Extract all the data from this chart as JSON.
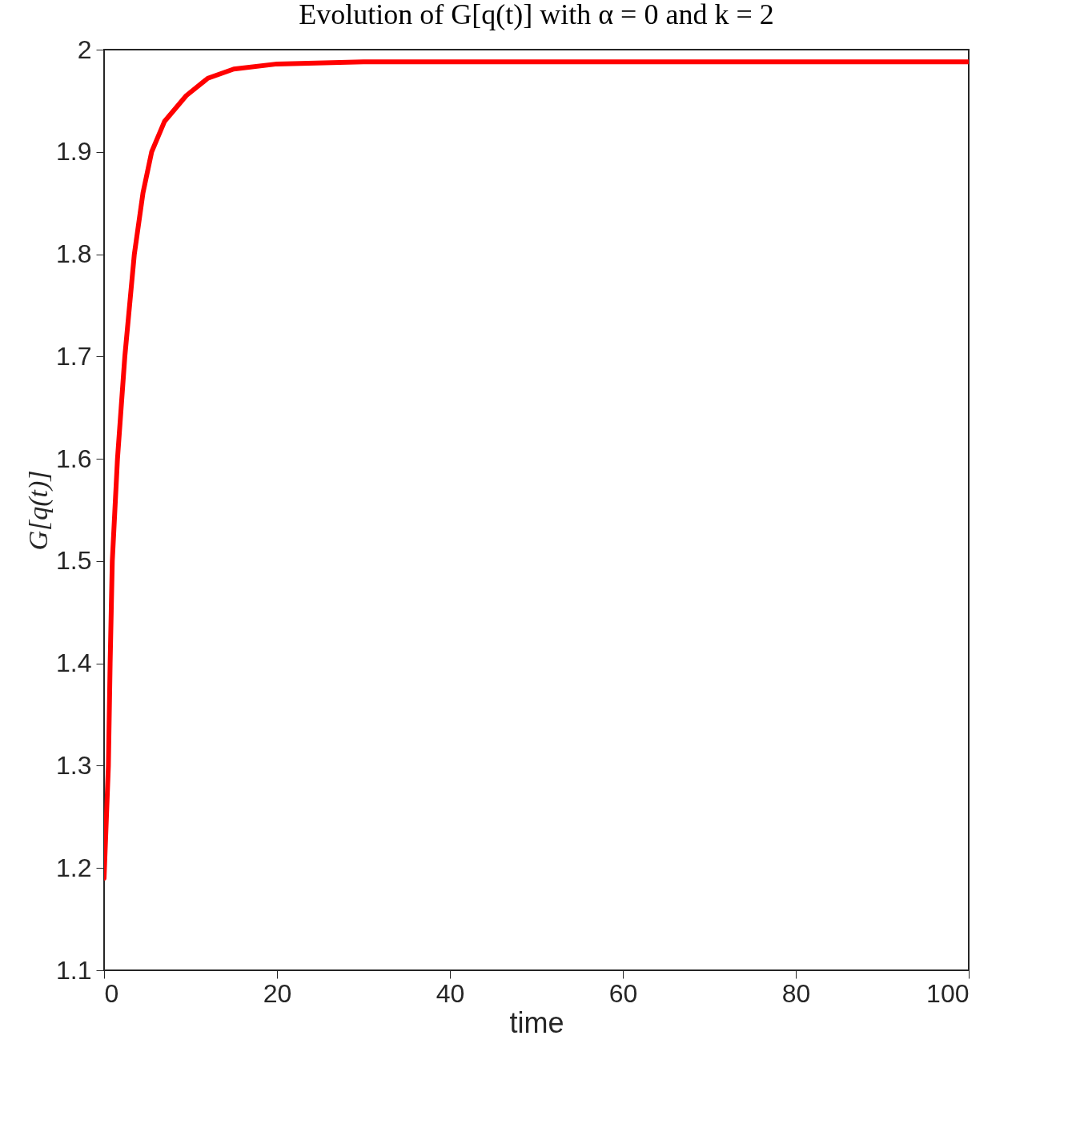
{
  "chart_data": {
    "type": "line",
    "title": "Evolution of G[q(t)] with α = 0 and k = 2",
    "xlabel": "time",
    "ylabel": "G[q(t)]",
    "x": [
      0,
      0.5,
      0.7,
      0.95,
      1.55,
      2.4,
      3.5,
      4.5,
      5.5,
      7,
      9.5,
      12,
      15,
      20,
      30,
      100
    ],
    "series": [
      {
        "color": "#ff0000",
        "values": [
          1.19,
          1.3,
          1.4,
          1.5,
          1.6,
          1.7,
          1.8,
          1.86,
          1.9,
          1.93,
          1.955,
          1.972,
          1.981,
          1.986,
          1.988,
          1.988
        ]
      }
    ],
    "xlim": [
      0,
      100
    ],
    "xticks": [
      0,
      20,
      40,
      60,
      80,
      100
    ],
    "ylim": [
      1.1,
      2
    ],
    "yticks": [
      1.1,
      1.2,
      1.3,
      1.4,
      1.5,
      1.6,
      1.7,
      1.8,
      1.9,
      2
    ],
    "grid": false,
    "marker": "none",
    "line_style": "solid"
  }
}
